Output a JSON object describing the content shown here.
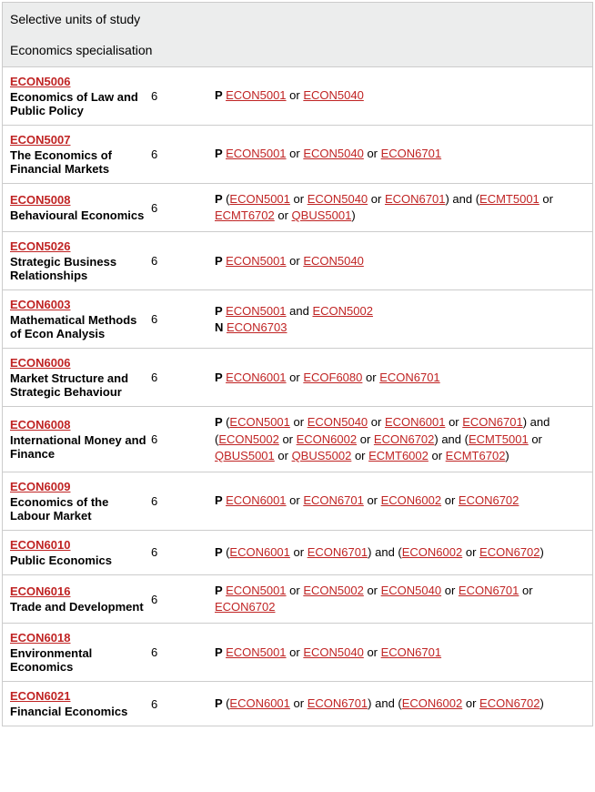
{
  "header": {
    "title": "Selective units of study",
    "subtitle": "Economics specialisation"
  },
  "colors": {
    "link": "#c02424",
    "border": "#cccccc",
    "header_bg": "#eceded"
  },
  "rows": [
    {
      "code": "ECON5006",
      "title": "Economics of Law and Public Policy",
      "credit": "6",
      "prereq": [
        {
          "t": "prefix",
          "v": "P "
        },
        {
          "t": "link",
          "v": "ECON5001"
        },
        {
          "t": "text",
          "v": " or "
        },
        {
          "t": "link",
          "v": "ECON5040"
        }
      ]
    },
    {
      "code": "ECON5007",
      "title": "The Economics of Financial Markets",
      "credit": "6",
      "prereq": [
        {
          "t": "prefix",
          "v": "P "
        },
        {
          "t": "link",
          "v": "ECON5001"
        },
        {
          "t": "text",
          "v": " or "
        },
        {
          "t": "link",
          "v": "ECON5040"
        },
        {
          "t": "text",
          "v": " or "
        },
        {
          "t": "link",
          "v": "ECON6701"
        }
      ]
    },
    {
      "code": "ECON5008",
      "title": "Behavioural Economics",
      "credit": "6",
      "prereq": [
        {
          "t": "prefix",
          "v": "P "
        },
        {
          "t": "text",
          "v": "("
        },
        {
          "t": "link",
          "v": "ECON5001"
        },
        {
          "t": "text",
          "v": " or "
        },
        {
          "t": "link",
          "v": "ECON5040"
        },
        {
          "t": "text",
          "v": " or "
        },
        {
          "t": "link",
          "v": "ECON6701"
        },
        {
          "t": "text",
          "v": ") and ("
        },
        {
          "t": "link",
          "v": "ECMT5001"
        },
        {
          "t": "text",
          "v": " or "
        },
        {
          "t": "link",
          "v": "ECMT6702"
        },
        {
          "t": "text",
          "v": " or "
        },
        {
          "t": "link",
          "v": "QBUS5001"
        },
        {
          "t": "text",
          "v": ")"
        }
      ]
    },
    {
      "code": "ECON5026",
      "title": "Strategic Business Relationships",
      "credit": "6",
      "prereq": [
        {
          "t": "prefix",
          "v": "P "
        },
        {
          "t": "link",
          "v": "ECON5001"
        },
        {
          "t": "text",
          "v": " or "
        },
        {
          "t": "link",
          "v": "ECON5040"
        }
      ]
    },
    {
      "code": "ECON6003",
      "title": "Mathematical Methods of Econ Analysis",
      "credit": "6",
      "prereq": [
        {
          "t": "prefix",
          "v": "P "
        },
        {
          "t": "link",
          "v": "ECON5001"
        },
        {
          "t": "text",
          "v": " and "
        },
        {
          "t": "link",
          "v": "ECON5002"
        },
        {
          "t": "br"
        },
        {
          "t": "prefix",
          "v": "N "
        },
        {
          "t": "link",
          "v": "ECON6703"
        }
      ]
    },
    {
      "code": "ECON6006",
      "title": "Market Structure and Strategic Behaviour",
      "credit": "6",
      "prereq": [
        {
          "t": "prefix",
          "v": "P "
        },
        {
          "t": "link",
          "v": "ECON6001"
        },
        {
          "t": "text",
          "v": " or "
        },
        {
          "t": "link",
          "v": "ECOF6080"
        },
        {
          "t": "text",
          "v": " or "
        },
        {
          "t": "link",
          "v": "ECON6701"
        }
      ]
    },
    {
      "code": "ECON6008",
      "title": "International Money and Finance",
      "credit": "6",
      "prereq": [
        {
          "t": "prefix",
          "v": "P "
        },
        {
          "t": "text",
          "v": "("
        },
        {
          "t": "link",
          "v": "ECON5001"
        },
        {
          "t": "text",
          "v": " or "
        },
        {
          "t": "link",
          "v": "ECON5040"
        },
        {
          "t": "text",
          "v": " or "
        },
        {
          "t": "link",
          "v": "ECON6001"
        },
        {
          "t": "text",
          "v": " or "
        },
        {
          "t": "link",
          "v": "ECON6701"
        },
        {
          "t": "text",
          "v": ") and ("
        },
        {
          "t": "link",
          "v": "ECON5002"
        },
        {
          "t": "text",
          "v": " or "
        },
        {
          "t": "link",
          "v": "ECON6002"
        },
        {
          "t": "text",
          "v": " or "
        },
        {
          "t": "link",
          "v": "ECON6702"
        },
        {
          "t": "text",
          "v": ") and ("
        },
        {
          "t": "link",
          "v": "ECMT5001"
        },
        {
          "t": "text",
          "v": " or "
        },
        {
          "t": "link",
          "v": "QBUS5001"
        },
        {
          "t": "text",
          "v": " or "
        },
        {
          "t": "link",
          "v": "QBUS5002"
        },
        {
          "t": "text",
          "v": " or "
        },
        {
          "t": "link",
          "v": "ECMT6002"
        },
        {
          "t": "text",
          "v": " or "
        },
        {
          "t": "link",
          "v": "ECMT6702"
        },
        {
          "t": "text",
          "v": ")"
        }
      ]
    },
    {
      "code": "ECON6009",
      "title": "Economics of the Labour Market",
      "credit": "6",
      "prereq": [
        {
          "t": "prefix",
          "v": "P "
        },
        {
          "t": "link",
          "v": "ECON6001"
        },
        {
          "t": "text",
          "v": " or "
        },
        {
          "t": "link",
          "v": "ECON6701"
        },
        {
          "t": "text",
          "v": " or "
        },
        {
          "t": "link",
          "v": "ECON6002"
        },
        {
          "t": "text",
          "v": " or "
        },
        {
          "t": "link",
          "v": "ECON6702"
        }
      ]
    },
    {
      "code": "ECON6010",
      "title": "Public Economics",
      "credit": "6",
      "prereq": [
        {
          "t": "prefix",
          "v": "P "
        },
        {
          "t": "text",
          "v": "("
        },
        {
          "t": "link",
          "v": "ECON6001"
        },
        {
          "t": "text",
          "v": " or "
        },
        {
          "t": "link",
          "v": "ECON6701"
        },
        {
          "t": "text",
          "v": ") and ("
        },
        {
          "t": "link",
          "v": "ECON6002"
        },
        {
          "t": "text",
          "v": " or "
        },
        {
          "t": "link",
          "v": "ECON6702"
        },
        {
          "t": "text",
          "v": ")"
        }
      ]
    },
    {
      "code": "ECON6016",
      "title": "Trade and Development",
      "credit": "6",
      "prereq": [
        {
          "t": "prefix",
          "v": "P "
        },
        {
          "t": "link",
          "v": "ECON5001"
        },
        {
          "t": "text",
          "v": " or "
        },
        {
          "t": "link",
          "v": "ECON5002"
        },
        {
          "t": "text",
          "v": " or "
        },
        {
          "t": "link",
          "v": "ECON5040"
        },
        {
          "t": "text",
          "v": " or "
        },
        {
          "t": "link",
          "v": "ECON6701"
        },
        {
          "t": "text",
          "v": " or "
        },
        {
          "t": "link",
          "v": "ECON6702"
        }
      ]
    },
    {
      "code": "ECON6018",
      "title": "Environmental Economics",
      "credit": "6",
      "prereq": [
        {
          "t": "prefix",
          "v": "P "
        },
        {
          "t": "link",
          "v": "ECON5001"
        },
        {
          "t": "text",
          "v": " or "
        },
        {
          "t": "link",
          "v": "ECON5040"
        },
        {
          "t": "text",
          "v": " or "
        },
        {
          "t": "link",
          "v": "ECON6701"
        }
      ]
    },
    {
      "code": "ECON6021",
      "title": "Financial Economics",
      "credit": "6",
      "prereq": [
        {
          "t": "prefix",
          "v": "P "
        },
        {
          "t": "text",
          "v": "("
        },
        {
          "t": "link",
          "v": "ECON6001"
        },
        {
          "t": "text",
          "v": " or "
        },
        {
          "t": "link",
          "v": "ECON6701"
        },
        {
          "t": "text",
          "v": ") and ("
        },
        {
          "t": "link",
          "v": "ECON6002"
        },
        {
          "t": "text",
          "v": " or "
        },
        {
          "t": "link",
          "v": "ECON6702"
        },
        {
          "t": "text",
          "v": ")"
        }
      ]
    }
  ]
}
